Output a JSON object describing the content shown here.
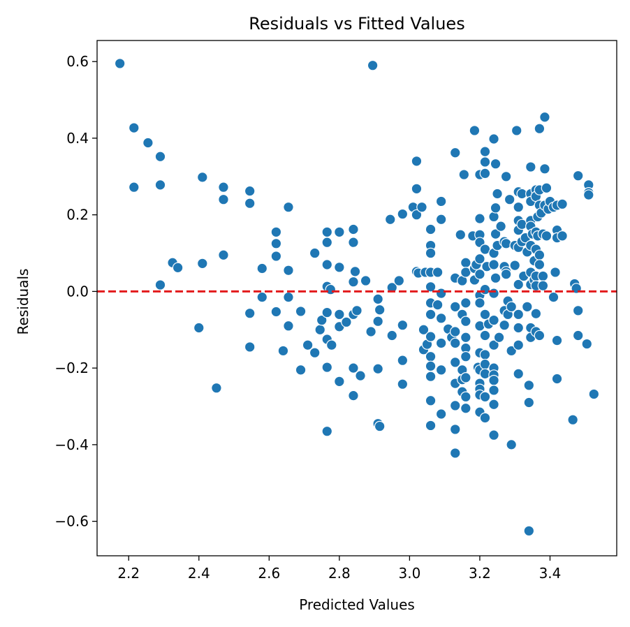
{
  "chart_data": {
    "type": "scatter",
    "title": "Residuals vs Fitted Values",
    "xlabel": "Predicted Values",
    "ylabel": "Residuals",
    "xlim": [
      2.11,
      3.59
    ],
    "ylim": [
      -0.69,
      0.655
    ],
    "x_ticks": [
      2.2,
      2.4,
      2.6,
      2.8,
      3.0,
      3.2,
      3.4
    ],
    "x_tick_labels": [
      "2.2",
      "2.4",
      "2.6",
      "2.8",
      "3.0",
      "3.2",
      "3.4"
    ],
    "y_ticks": [
      -0.6,
      -0.4,
      -0.2,
      0.0,
      0.2,
      0.4,
      0.6
    ],
    "y_tick_labels": [
      "−0.6",
      "−0.4",
      "−0.2",
      "0.0",
      "0.2",
      "0.4",
      "0.6"
    ],
    "reference_line": {
      "y": 0.0,
      "style": "dashed",
      "color": "#e31a1c"
    },
    "marker_color": "#1f77b4",
    "grid": false,
    "legend": "none",
    "points": [
      [
        2.175,
        0.595
      ],
      [
        2.215,
        0.427
      ],
      [
        2.255,
        0.388
      ],
      [
        2.29,
        0.352
      ],
      [
        2.215,
        0.272
      ],
      [
        2.29,
        0.278
      ],
      [
        2.29,
        0.017
      ],
      [
        2.325,
        0.075
      ],
      [
        2.34,
        0.062
      ],
      [
        2.4,
        -0.095
      ],
      [
        2.41,
        0.298
      ],
      [
        2.41,
        0.073
      ],
      [
        2.45,
        -0.252
      ],
      [
        2.47,
        0.272
      ],
      [
        2.47,
        0.24
      ],
      [
        2.47,
        0.095
      ],
      [
        2.545,
        0.262
      ],
      [
        2.545,
        0.23
      ],
      [
        2.545,
        -0.057
      ],
      [
        2.545,
        -0.145
      ],
      [
        2.58,
        0.06
      ],
      [
        2.58,
        -0.015
      ],
      [
        2.62,
        0.155
      ],
      [
        2.62,
        0.125
      ],
      [
        2.62,
        0.092
      ],
      [
        2.62,
        -0.053
      ],
      [
        2.64,
        -0.155
      ],
      [
        2.655,
        0.22
      ],
      [
        2.655,
        0.055
      ],
      [
        2.655,
        -0.015
      ],
      [
        2.655,
        -0.09
      ],
      [
        2.69,
        -0.052
      ],
      [
        2.69,
        -0.205
      ],
      [
        2.71,
        -0.14
      ],
      [
        2.73,
        0.1
      ],
      [
        2.73,
        -0.16
      ],
      [
        2.745,
        -0.1
      ],
      [
        2.75,
        -0.075
      ],
      [
        2.765,
        0.155
      ],
      [
        2.765,
        0.128
      ],
      [
        2.765,
        0.07
      ],
      [
        2.765,
        0.013
      ],
      [
        2.765,
        -0.055
      ],
      [
        2.765,
        -0.125
      ],
      [
        2.765,
        -0.198
      ],
      [
        2.765,
        -0.365
      ],
      [
        2.775,
        0.005
      ],
      [
        2.778,
        -0.14
      ],
      [
        2.8,
        0.155
      ],
      [
        2.8,
        0.063
      ],
      [
        2.8,
        -0.06
      ],
      [
        2.8,
        -0.092
      ],
      [
        2.8,
        -0.235
      ],
      [
        2.82,
        -0.08
      ],
      [
        2.84,
        0.162
      ],
      [
        2.84,
        0.128
      ],
      [
        2.84,
        0.025
      ],
      [
        2.84,
        -0.06
      ],
      [
        2.84,
        -0.2
      ],
      [
        2.84,
        -0.272
      ],
      [
        2.845,
        0.052
      ],
      [
        2.85,
        -0.05
      ],
      [
        2.86,
        -0.22
      ],
      [
        2.875,
        0.028
      ],
      [
        2.89,
        -0.105
      ],
      [
        2.895,
        0.59
      ],
      [
        2.91,
        -0.02
      ],
      [
        2.91,
        -0.078
      ],
      [
        2.91,
        -0.202
      ],
      [
        2.91,
        -0.345
      ],
      [
        2.915,
        -0.352
      ],
      [
        2.915,
        -0.048
      ],
      [
        2.945,
        0.188
      ],
      [
        2.95,
        0.01
      ],
      [
        2.95,
        -0.115
      ],
      [
        2.97,
        0.028
      ],
      [
        2.98,
        0.202
      ],
      [
        2.98,
        -0.088
      ],
      [
        2.98,
        -0.18
      ],
      [
        2.98,
        -0.242
      ],
      [
        3.01,
        0.22
      ],
      [
        3.02,
        0.34
      ],
      [
        3.02,
        0.268
      ],
      [
        3.02,
        0.2
      ],
      [
        3.02,
        0.052
      ],
      [
        3.025,
        0.048
      ],
      [
        3.035,
        0.22
      ],
      [
        3.04,
        -0.1
      ],
      [
        3.04,
        -0.152
      ],
      [
        3.045,
        0.05
      ],
      [
        3.05,
        -0.138
      ],
      [
        3.06,
        0.162
      ],
      [
        3.06,
        0.12
      ],
      [
        3.06,
        0.1
      ],
      [
        3.06,
        0.05
      ],
      [
        3.06,
        0.012
      ],
      [
        3.06,
        -0.03
      ],
      [
        3.06,
        -0.06
      ],
      [
        3.06,
        -0.118
      ],
      [
        3.06,
        -0.17
      ],
      [
        3.06,
        -0.195
      ],
      [
        3.06,
        -0.222
      ],
      [
        3.06,
        -0.285
      ],
      [
        3.06,
        -0.35
      ],
      [
        3.08,
        0.05
      ],
      [
        3.08,
        -0.035
      ],
      [
        3.09,
        0.235
      ],
      [
        3.09,
        0.188
      ],
      [
        3.09,
        -0.005
      ],
      [
        3.09,
        -0.07
      ],
      [
        3.09,
        -0.135
      ],
      [
        3.09,
        -0.205
      ],
      [
        3.09,
        -0.32
      ],
      [
        3.11,
        -0.098
      ],
      [
        3.12,
        -0.12
      ],
      [
        3.13,
        0.362
      ],
      [
        3.13,
        0.035
      ],
      [
        3.13,
        -0.04
      ],
      [
        3.13,
        -0.105
      ],
      [
        3.13,
        -0.135
      ],
      [
        3.13,
        -0.185
      ],
      [
        3.13,
        -0.24
      ],
      [
        3.13,
        -0.298
      ],
      [
        3.13,
        -0.36
      ],
      [
        3.13,
        -0.422
      ],
      [
        3.145,
        0.148
      ],
      [
        3.15,
        0.028
      ],
      [
        3.15,
        -0.06
      ],
      [
        3.15,
        -0.205
      ],
      [
        3.15,
        -0.23
      ],
      [
        3.15,
        -0.262
      ],
      [
        3.155,
        0.305
      ],
      [
        3.16,
        0.075
      ],
      [
        3.16,
        0.05
      ],
      [
        3.16,
        -0.03
      ],
      [
        3.16,
        -0.078
      ],
      [
        3.16,
        -0.12
      ],
      [
        3.16,
        -0.148
      ],
      [
        3.16,
        -0.17
      ],
      [
        3.16,
        -0.225
      ],
      [
        3.16,
        -0.275
      ],
      [
        3.16,
        -0.305
      ],
      [
        3.18,
        0.145
      ],
      [
        3.185,
        0.42
      ],
      [
        3.185,
        0.06
      ],
      [
        3.185,
        0.03
      ],
      [
        3.19,
        0.07
      ],
      [
        3.195,
        -0.198
      ],
      [
        3.2,
        0.305
      ],
      [
        3.2,
        0.19
      ],
      [
        3.2,
        0.148
      ],
      [
        3.2,
        0.128
      ],
      [
        3.2,
        0.085
      ],
      [
        3.2,
        0.045
      ],
      [
        3.2,
        -0.01
      ],
      [
        3.2,
        -0.03
      ],
      [
        3.2,
        -0.09
      ],
      [
        3.2,
        -0.16
      ],
      [
        3.2,
        -0.205
      ],
      [
        3.2,
        -0.24
      ],
      [
        3.2,
        -0.255
      ],
      [
        3.2,
        -0.27
      ],
      [
        3.2,
        -0.315
      ],
      [
        3.215,
        0.365
      ],
      [
        3.215,
        0.338
      ],
      [
        3.215,
        0.308
      ],
      [
        3.215,
        0.11
      ],
      [
        3.215,
        0.005
      ],
      [
        3.215,
        -0.06
      ],
      [
        3.215,
        -0.115
      ],
      [
        3.215,
        -0.165
      ],
      [
        3.215,
        -0.19
      ],
      [
        3.215,
        -0.215
      ],
      [
        3.215,
        -0.275
      ],
      [
        3.215,
        -0.33
      ],
      [
        3.22,
        0.065
      ],
      [
        3.225,
        -0.085
      ],
      [
        3.24,
        0.398
      ],
      [
        3.24,
        0.195
      ],
      [
        3.24,
        0.1
      ],
      [
        3.24,
        0.07
      ],
      [
        3.24,
        -0.005
      ],
      [
        3.24,
        -0.075
      ],
      [
        3.24,
        -0.14
      ],
      [
        3.24,
        -0.2
      ],
      [
        3.24,
        -0.218
      ],
      [
        3.24,
        -0.232
      ],
      [
        3.24,
        -0.258
      ],
      [
        3.24,
        -0.295
      ],
      [
        3.24,
        -0.375
      ],
      [
        3.245,
        0.333
      ],
      [
        3.245,
        0.218
      ],
      [
        3.245,
        0.15
      ],
      [
        3.245,
        0.035
      ],
      [
        3.25,
        0.255
      ],
      [
        3.25,
        0.12
      ],
      [
        3.255,
        -0.12
      ],
      [
        3.26,
        0.17
      ],
      [
        3.27,
        0.13
      ],
      [
        3.27,
        0.065
      ],
      [
        3.27,
        -0.05
      ],
      [
        3.27,
        -0.088
      ],
      [
        3.275,
        0.3
      ],
      [
        3.275,
        0.125
      ],
      [
        3.275,
        0.052
      ],
      [
        3.275,
        0.045
      ],
      [
        3.28,
        -0.025
      ],
      [
        3.28,
        -0.06
      ],
      [
        3.285,
        0.24
      ],
      [
        3.29,
        -0.155
      ],
      [
        3.29,
        -0.4
      ],
      [
        3.29,
        -0.04
      ],
      [
        3.3,
        0.12
      ],
      [
        3.3,
        0.068
      ],
      [
        3.305,
        0.42
      ],
      [
        3.31,
        0.26
      ],
      [
        3.31,
        0.22
      ],
      [
        3.31,
        0.185
      ],
      [
        3.31,
        0.16
      ],
      [
        3.31,
        0.115
      ],
      [
        3.31,
        0.018
      ],
      [
        3.31,
        -0.06
      ],
      [
        3.31,
        -0.095
      ],
      [
        3.31,
        -0.14
      ],
      [
        3.31,
        -0.215
      ],
      [
        3.32,
        0.255
      ],
      [
        3.32,
        0.175
      ],
      [
        3.32,
        0.13
      ],
      [
        3.325,
        0.04
      ],
      [
        3.33,
        0.14
      ],
      [
        3.335,
        0.103
      ],
      [
        3.335,
        -0.04
      ],
      [
        3.34,
        -0.245
      ],
      [
        3.34,
        -0.29
      ],
      [
        3.34,
        -0.625
      ],
      [
        3.345,
        0.325
      ],
      [
        3.345,
        0.255
      ],
      [
        3.345,
        0.235
      ],
      [
        3.345,
        0.185
      ],
      [
        3.345,
        0.17
      ],
      [
        3.345,
        0.12
      ],
      [
        3.345,
        0.05
      ],
      [
        3.345,
        0.018
      ],
      [
        3.345,
        -0.095
      ],
      [
        3.345,
        -0.12
      ],
      [
        3.35,
        0.15
      ],
      [
        3.355,
        0.08
      ],
      [
        3.355,
        0.03
      ],
      [
        3.36,
        0.265
      ],
      [
        3.36,
        0.248
      ],
      [
        3.36,
        0.155
      ],
      [
        3.36,
        0.11
      ],
      [
        3.36,
        0.04
      ],
      [
        3.36,
        0.015
      ],
      [
        3.36,
        -0.058
      ],
      [
        3.36,
        -0.105
      ],
      [
        3.365,
        0.195
      ],
      [
        3.365,
        0.145
      ],
      [
        3.37,
        0.425
      ],
      [
        3.37,
        0.265
      ],
      [
        3.37,
        0.225
      ],
      [
        3.37,
        0.095
      ],
      [
        3.37,
        0.07
      ],
      [
        3.37,
        -0.115
      ],
      [
        3.375,
        0.205
      ],
      [
        3.38,
        0.15
      ],
      [
        3.38,
        0.04
      ],
      [
        3.38,
        0.015
      ],
      [
        3.385,
        0.455
      ],
      [
        3.385,
        0.32
      ],
      [
        3.385,
        0.225
      ],
      [
        3.39,
        0.27
      ],
      [
        3.39,
        0.145
      ],
      [
        3.395,
        0.215
      ],
      [
        3.4,
        0.235
      ],
      [
        3.41,
        0.22
      ],
      [
        3.41,
        -0.015
      ],
      [
        3.415,
        0.05
      ],
      [
        3.42,
        0.225
      ],
      [
        3.42,
        0.16
      ],
      [
        3.42,
        0.14
      ],
      [
        3.42,
        -0.128
      ],
      [
        3.42,
        -0.228
      ],
      [
        3.435,
        0.228
      ],
      [
        3.435,
        0.145
      ],
      [
        3.465,
        -0.335
      ],
      [
        3.47,
        0.02
      ],
      [
        3.475,
        0.008
      ],
      [
        3.48,
        0.302
      ],
      [
        3.48,
        -0.05
      ],
      [
        3.48,
        -0.115
      ],
      [
        3.505,
        -0.137
      ],
      [
        3.51,
        0.278
      ],
      [
        3.51,
        0.258
      ],
      [
        3.51,
        0.252
      ],
      [
        3.525,
        -0.268
      ]
    ]
  }
}
